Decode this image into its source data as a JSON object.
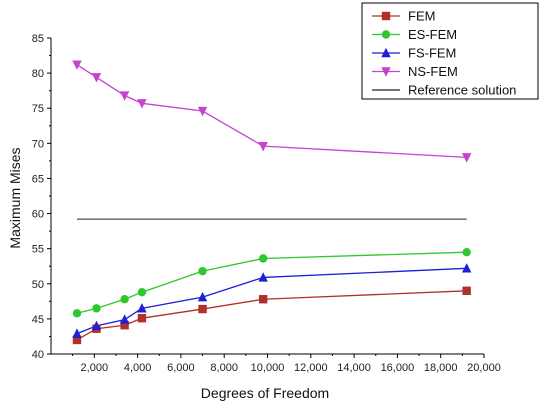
{
  "chart_data": {
    "type": "line",
    "title": "",
    "xlabel": "Degrees of Freedom",
    "ylabel": "Maximum Mises",
    "xlim": [
      0,
      20000
    ],
    "ylim": [
      40,
      85
    ],
    "xticks": [
      2000,
      4000,
      6000,
      8000,
      10000,
      12000,
      14000,
      16000,
      18000,
      20000
    ],
    "xtick_labels": [
      "2,000",
      "4,000",
      "6,000",
      "8,000",
      "10,000",
      "12,000",
      "14,000",
      "16,000",
      "18,000",
      "20,000"
    ],
    "yticks": [
      40,
      45,
      50,
      55,
      60,
      65,
      70,
      75,
      80,
      85
    ],
    "ytick_labels": [
      "40",
      "45",
      "50",
      "55",
      "60",
      "65",
      "70",
      "75",
      "80",
      "85"
    ],
    "grid": false,
    "legend_position": "top-right",
    "x": [
      1200,
      2100,
      3400,
      4200,
      7000,
      9800,
      19200
    ],
    "series": [
      {
        "name": "FEM",
        "color": "#b0302a",
        "marker": "square",
        "values": [
          42.0,
          43.6,
          44.1,
          45.1,
          46.4,
          47.8,
          49.0
        ]
      },
      {
        "name": "ES-FEM",
        "color": "#2ec82e",
        "marker": "circle",
        "values": [
          45.8,
          46.5,
          47.8,
          48.8,
          51.8,
          53.6,
          54.5
        ]
      },
      {
        "name": "FS-FEM",
        "color": "#1f1fd6",
        "marker": "triangle-up",
        "values": [
          42.9,
          44.0,
          44.9,
          46.5,
          48.1,
          50.9,
          52.2
        ]
      },
      {
        "name": "NS-FEM",
        "color": "#c642d0",
        "marker": "triangle-down",
        "values": [
          81.2,
          79.4,
          76.8,
          75.7,
          74.6,
          69.6,
          68.0
        ]
      }
    ],
    "reference": {
      "name": "Reference solution",
      "color": "#222222",
      "value": 59.2,
      "x_range": [
        1200,
        19200
      ]
    }
  }
}
